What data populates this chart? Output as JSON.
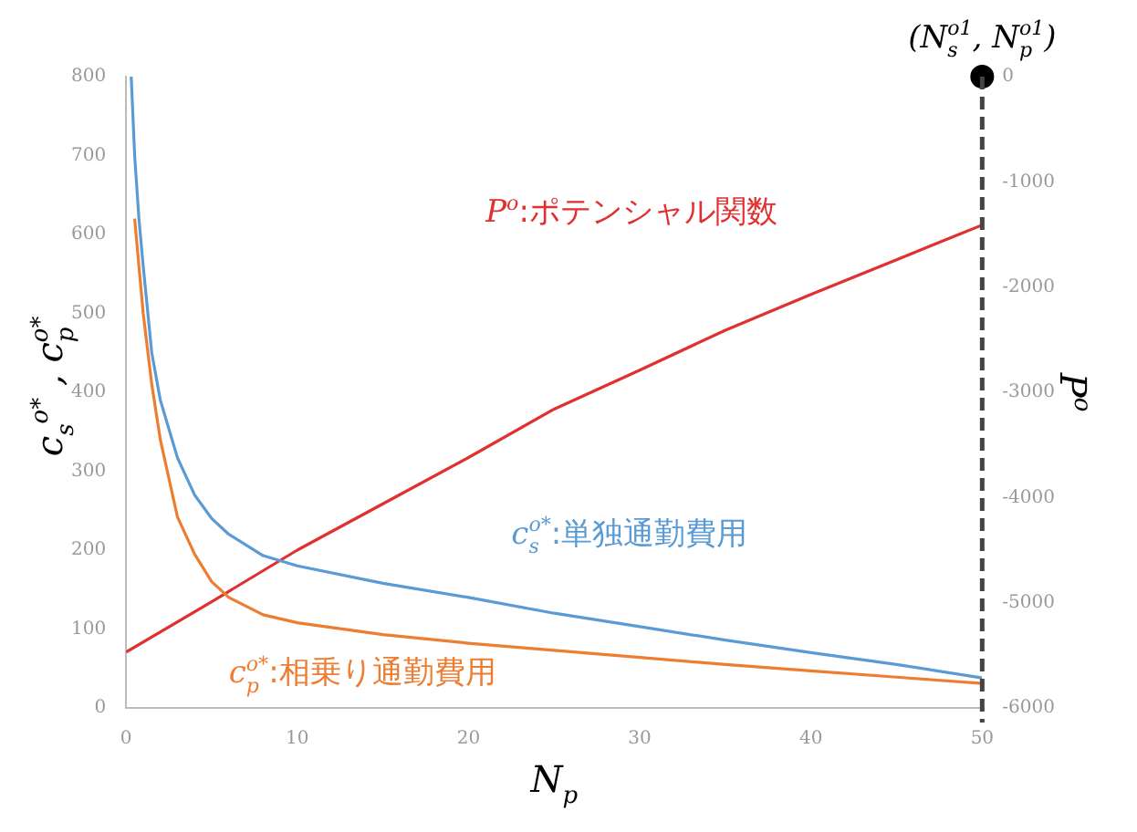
{
  "chart_data": {
    "type": "line",
    "xlabel": "N$_{p}$",
    "ylabel": "c$_{s}$$^{o*}$ , c$_{p}$$^{o*}$",
    "y2label": "P$^{o}$",
    "x": [
      0.3,
      0.5,
      0.75,
      1,
      1.5,
      2,
      3,
      4,
      5,
      6,
      8,
      10,
      15,
      20,
      25,
      30,
      35,
      40,
      45,
      50
    ],
    "series": [
      {
        "name": "c$_{s}$$^{o*}$:単独通勤費用",
        "color": "#5b9bd5",
        "values": [
          800,
          700,
          620,
          560,
          450,
          390,
          317,
          270,
          240,
          220,
          193,
          180,
          158,
          140,
          120,
          103,
          86,
          70,
          55,
          38
        ]
      },
      {
        "name": "c$_{p}$$^{o*}$:相乗り通勤費用",
        "color": "#ed7d31",
        "values": [
          null,
          620,
          560,
          500,
          410,
          340,
          242,
          195,
          160,
          140,
          118,
          108,
          93,
          82,
          73,
          64,
          55,
          47,
          39,
          31
        ]
      },
      {
        "name": "P$^{o}$:ポテンシャル関数",
        "color": "#e03030",
        "axis": "y2",
        "x": [
          0,
          5,
          10,
          15,
          20,
          25,
          30,
          35,
          40,
          45,
          50
        ],
        "values": [
          -5470,
          -4990,
          -4500,
          -4060,
          -3620,
          -3160,
          -2790,
          -2410,
          -2070,
          -1740,
          -1410
        ]
      },
      {
        "type": "scatter",
        "axis": "y2",
        "color": "#000000",
        "marker": "circle",
        "x": [
          50
        ],
        "values": [
          0
        ]
      }
    ],
    "annotations": [
      "(N$_{s}$$^{o1}$, N$_{p}$$^{o1}$)"
    ],
    "xlim": [
      0,
      50
    ],
    "xticks": [
      0,
      10,
      20,
      30,
      40,
      50
    ],
    "ylim": [
      0,
      800
    ],
    "yticks": [
      0,
      100,
      200,
      300,
      400,
      500,
      600,
      700,
      800
    ],
    "y2lim": [
      -6000,
      0
    ],
    "y2ticks": [
      -6000,
      -5000,
      -4000,
      -3000,
      -2000,
      -1000,
      0
    ],
    "grid": false,
    "legend": false,
    "marker": "none",
    "line_style": "solid"
  }
}
